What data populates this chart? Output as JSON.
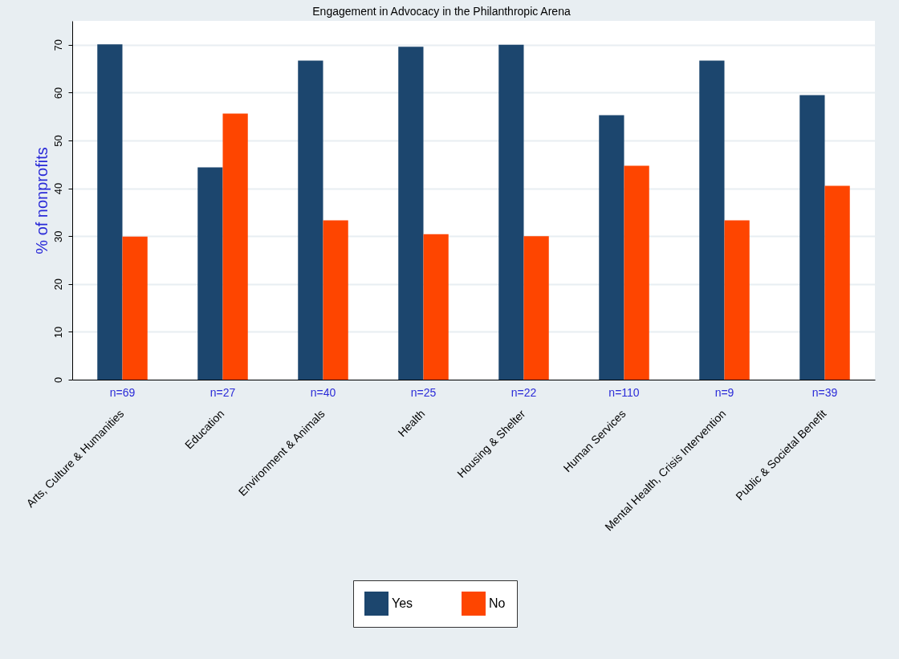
{
  "chart_data": {
    "type": "bar",
    "title": "Engagement in Advocacy in the Philanthropic Arena",
    "ylabel": "% of nonprofits",
    "categories": [
      "Arts, Culture & Humanities",
      "Education",
      "Environment & Animals",
      "Health",
      "Housing & Shelter",
      "Human Services",
      "Mental Health, Crisis Intervention",
      "Public & Societal Benefit"
    ],
    "series": [
      {
        "name": "Yes",
        "color": "#1c466e",
        "values": [
          70.1,
          44.4,
          66.7,
          69.6,
          70,
          55.3,
          66.7,
          59.5
        ]
      },
      {
        "name": "No",
        "color": "#fe4500",
        "values": [
          29.9,
          55.6,
          33.3,
          30.4,
          30,
          44.7,
          33.3,
          40.5
        ]
      }
    ],
    "annotations": [
      "n=69",
      "n=27",
      "n=40",
      "n=25",
      "n=22",
      "n=110",
      "n=9",
      "n=39"
    ],
    "ylim": [
      0,
      75
    ],
    "yticks": [
      0,
      10,
      20,
      30,
      40,
      50,
      60,
      70
    ],
    "grid": "y",
    "legend": "bottom"
  }
}
